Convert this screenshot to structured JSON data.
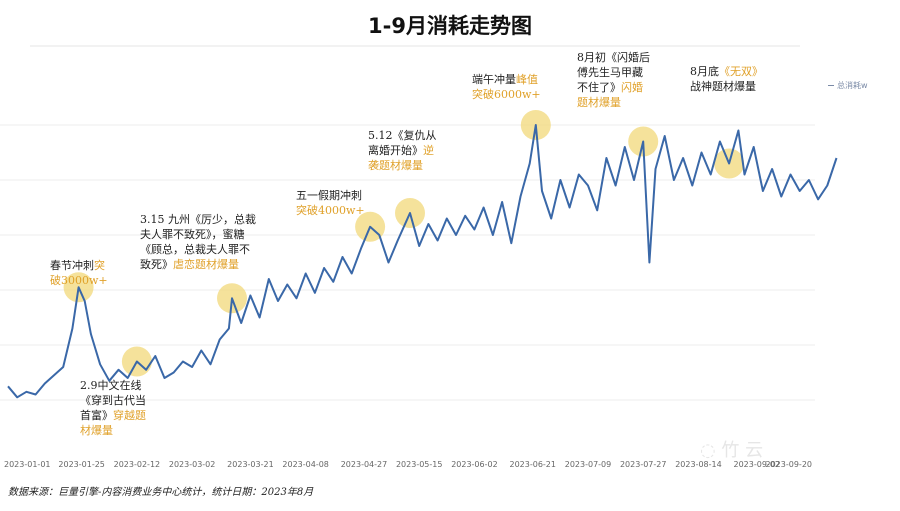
{
  "title": "1-9月消耗走势图",
  "legend": "总消耗w",
  "source": "数据来源：巨量引擎-内容消费业务中心统计，统计日期：2023年8月",
  "colors": {
    "line": "#3a68a8",
    "highlight": "#f2d87a",
    "accent_text": "#e0a12a"
  },
  "annotations": [
    {
      "lines": [
        [
          {
            "t": "春节冲刺"
          },
          {
            "t": "突",
            "hl": true
          }
        ],
        [
          {
            "t": "破3000w+",
            "hl": true
          }
        ]
      ]
    },
    {
      "lines": [
        [
          {
            "t": "2.9中文在线"
          }
        ],
        [
          {
            "t": "《穿到古代当"
          }
        ],
        [
          {
            "t": "首富》"
          },
          {
            "t": "穿越题",
            "hl": true
          }
        ],
        [
          {
            "t": "材爆量",
            "hl": true
          }
        ]
      ]
    },
    {
      "lines": [
        [
          {
            "t": "3.15 九州《厉少，总裁"
          }
        ],
        [
          {
            "t": "夫人罪不致死》，蜜糖"
          }
        ],
        [
          {
            "t": "《顾总，总裁夫人罪不"
          }
        ],
        [
          {
            "t": "致死》"
          },
          {
            "t": "虐恋题材爆量",
            "hl": true
          }
        ]
      ]
    },
    {
      "lines": [
        [
          {
            "t": "五一假期冲刺"
          }
        ],
        [
          {
            "t": "突破4000w+",
            "hl": true
          }
        ]
      ]
    },
    {
      "lines": [
        [
          {
            "t": "5.12《复仇从"
          }
        ],
        [
          {
            "t": "离婚开始》"
          },
          {
            "t": "逆",
            "hl": true
          }
        ],
        [
          {
            "t": "袭题材爆量",
            "hl": true
          }
        ]
      ]
    },
    {
      "lines": [
        [
          {
            "t": "端午冲量"
          },
          {
            "t": "峰值",
            "hl": true
          }
        ],
        [
          {
            "t": "突破6000w+",
            "hl": true
          }
        ]
      ]
    },
    {
      "lines": [
        [
          {
            "t": "8月初《闪婚后"
          }
        ],
        [
          {
            "t": "傅先生马甲藏"
          }
        ],
        [
          {
            "t": "不住了》"
          },
          {
            "t": "闪婚",
            "hl": true
          }
        ],
        [
          {
            "t": "题材爆量",
            "hl": true
          }
        ]
      ]
    },
    {
      "lines": [
        [
          {
            "t": "8月底"
          },
          {
            "t": "《无双》",
            "hl": true
          }
        ],
        [
          {
            "t": "战神题材爆量"
          }
        ]
      ]
    }
  ],
  "chart_data": {
    "type": "line",
    "title": "1-9月消耗走势图",
    "legend_position": "top-right",
    "grid": true,
    "ylim": [
      0,
      7000
    ],
    "x_ticks": [
      "2023-01-01",
      "2023-01-25",
      "2023-02-12",
      "2023-03-02",
      "2023-03-21",
      "2023-04-08",
      "2023-04-27",
      "2023-05-15",
      "2023-06-02",
      "2023-06-21",
      "2023-07-09",
      "2023-07-27",
      "2023-08-14",
      "2023-09-02",
      "2023-09-20"
    ],
    "series": [
      {
        "name": "总消耗w",
        "points": [
          [
            "2023-01-01",
            1250
          ],
          [
            "2023-01-04",
            1050
          ],
          [
            "2023-01-07",
            1150
          ],
          [
            "2023-01-10",
            1100
          ],
          [
            "2023-01-13",
            1300
          ],
          [
            "2023-01-16",
            1450
          ],
          [
            "2023-01-19",
            1600
          ],
          [
            "2023-01-22",
            2300
          ],
          [
            "2023-01-24",
            3050
          ],
          [
            "2023-01-26",
            2800
          ],
          [
            "2023-01-28",
            2200
          ],
          [
            "2023-01-31",
            1650
          ],
          [
            "2023-02-03",
            1350
          ],
          [
            "2023-02-06",
            1550
          ],
          [
            "2023-02-09",
            1400
          ],
          [
            "2023-02-12",
            1700
          ],
          [
            "2023-02-15",
            1550
          ],
          [
            "2023-02-18",
            1800
          ],
          [
            "2023-02-21",
            1400
          ],
          [
            "2023-02-24",
            1500
          ],
          [
            "2023-02-27",
            1700
          ],
          [
            "2023-03-02",
            1600
          ],
          [
            "2023-03-05",
            1900
          ],
          [
            "2023-03-08",
            1650
          ],
          [
            "2023-03-11",
            2100
          ],
          [
            "2023-03-14",
            2300
          ],
          [
            "2023-03-15",
            2850
          ],
          [
            "2023-03-18",
            2400
          ],
          [
            "2023-03-21",
            2900
          ],
          [
            "2023-03-24",
            2500
          ],
          [
            "2023-03-27",
            3200
          ],
          [
            "2023-03-30",
            2800
          ],
          [
            "2023-04-02",
            3100
          ],
          [
            "2023-04-05",
            2850
          ],
          [
            "2023-04-08",
            3300
          ],
          [
            "2023-04-11",
            2950
          ],
          [
            "2023-04-14",
            3400
          ],
          [
            "2023-04-17",
            3150
          ],
          [
            "2023-04-20",
            3600
          ],
          [
            "2023-04-23",
            3300
          ],
          [
            "2023-04-26",
            3750
          ],
          [
            "2023-04-29",
            4150
          ],
          [
            "2023-05-02",
            4000
          ],
          [
            "2023-05-05",
            3500
          ],
          [
            "2023-05-08",
            3900
          ],
          [
            "2023-05-12",
            4400
          ],
          [
            "2023-05-15",
            3800
          ],
          [
            "2023-05-18",
            4200
          ],
          [
            "2023-05-21",
            3900
          ],
          [
            "2023-05-24",
            4300
          ],
          [
            "2023-05-27",
            4000
          ],
          [
            "2023-05-30",
            4350
          ],
          [
            "2023-06-02",
            4100
          ],
          [
            "2023-06-05",
            4500
          ],
          [
            "2023-06-08",
            4000
          ],
          [
            "2023-06-11",
            4600
          ],
          [
            "2023-06-14",
            3850
          ],
          [
            "2023-06-17",
            4700
          ],
          [
            "2023-06-20",
            5300
          ],
          [
            "2023-06-22",
            6000
          ],
          [
            "2023-06-24",
            4800
          ],
          [
            "2023-06-27",
            4300
          ],
          [
            "2023-06-30",
            5000
          ],
          [
            "2023-07-03",
            4500
          ],
          [
            "2023-07-06",
            5100
          ],
          [
            "2023-07-09",
            4900
          ],
          [
            "2023-07-12",
            4450
          ],
          [
            "2023-07-15",
            5400
          ],
          [
            "2023-07-18",
            4900
          ],
          [
            "2023-07-21",
            5600
          ],
          [
            "2023-07-24",
            5000
          ],
          [
            "2023-07-27",
            5700
          ],
          [
            "2023-07-29",
            3500
          ],
          [
            "2023-07-31",
            5200
          ],
          [
            "2023-08-03",
            5800
          ],
          [
            "2023-08-06",
            5000
          ],
          [
            "2023-08-09",
            5400
          ],
          [
            "2023-08-12",
            4900
          ],
          [
            "2023-08-15",
            5500
          ],
          [
            "2023-08-18",
            5100
          ],
          [
            "2023-08-21",
            5700
          ],
          [
            "2023-08-24",
            5300
          ],
          [
            "2023-08-27",
            5900
          ],
          [
            "2023-08-29",
            5100
          ],
          [
            "2023-09-01",
            5600
          ],
          [
            "2023-09-04",
            4800
          ],
          [
            "2023-09-07",
            5200
          ],
          [
            "2023-09-10",
            4700
          ],
          [
            "2023-09-13",
            5100
          ],
          [
            "2023-09-16",
            4800
          ],
          [
            "2023-09-19",
            5000
          ],
          [
            "2023-09-22",
            4650
          ],
          [
            "2023-09-25",
            4900
          ],
          [
            "2023-09-28",
            5400
          ]
        ]
      }
    ]
  }
}
